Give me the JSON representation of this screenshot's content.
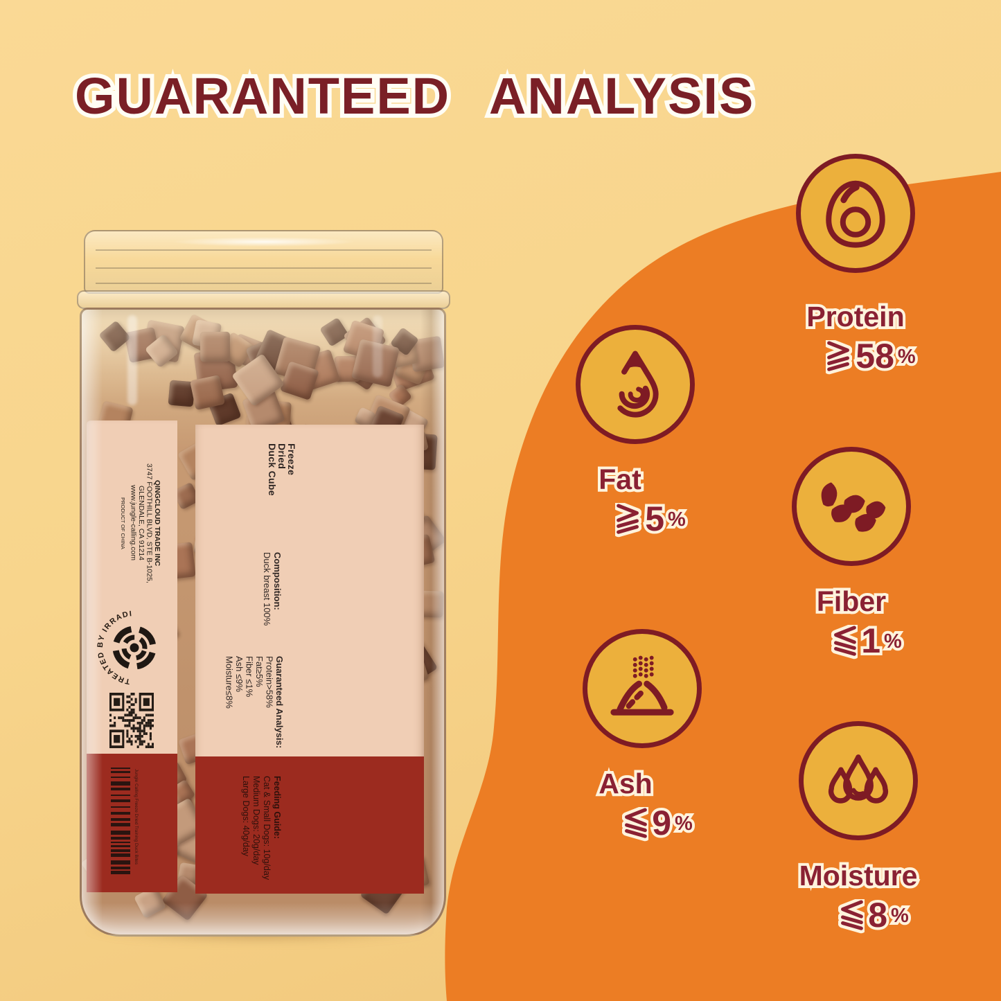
{
  "page": {
    "title": "GUARANTEED ANALYSIS"
  },
  "colors": {
    "bg": "#F8D68C",
    "blob": "#EC7D24",
    "amber": "#ECB03C",
    "maroon": "#7E1B24",
    "text_maroon": "#8A2133",
    "outline": "#FFF3DC",
    "title": "#7A1F26",
    "pink": "#F0CEB5",
    "band": "#9C2B1F",
    "ink": "#302724"
  },
  "stats": [
    {
      "id": "protein",
      "label": "Protein",
      "comparator": "≥",
      "value": "58",
      "unit": "%",
      "icon": "egg-protein-icon"
    },
    {
      "id": "fat",
      "label": "Fat",
      "comparator": "≥",
      "value": "5",
      "unit": "%",
      "icon": "droplet-fat-icon"
    },
    {
      "id": "fiber",
      "label": "Fiber",
      "comparator": "≤",
      "value": "1",
      "unit": "%",
      "icon": "fiber-twist-icon"
    },
    {
      "id": "ash",
      "label": "Ash",
      "comparator": "≤",
      "value": "9",
      "unit": "%",
      "icon": "ash-pile-icon"
    },
    {
      "id": "moisture",
      "label": "Moisture",
      "comparator": "≤",
      "value": "8",
      "unit": "%",
      "icon": "moisture-drops-icon"
    }
  ],
  "jar": {
    "label": {
      "product_name_lines": [
        "Freeze",
        "Dried",
        "Duck Cube"
      ],
      "composition": {
        "heading": "Composition:",
        "line": "Duck breast 100%"
      },
      "guaranteed_analysis": {
        "heading": "Guaranteed Analysis:",
        "lines": [
          "Protein>58%",
          "Fat≥5%",
          "Fiber ≤1%",
          "Ash ≤9%",
          "Moisture≤8%"
        ]
      },
      "feeding_guide": {
        "heading": "Feeding Guide:",
        "lines": [
          "Cat & Small Dogs: 10g/day",
          "Medium Dogs: 20g/day",
          "Large Dogs: 40g/day"
        ]
      },
      "address_lines": [
        "QINGCLOUD TRADE INC",
        "3747 FOOTHILL BLVD, STE B-1025,",
        "GLENDALE, CA 91214",
        "www.jungle-calling.com"
      ],
      "origin": "PRODUCT OF CHINA",
      "irradiation_text": "TREATED BY IRRADIATION",
      "barcode_caption": "Jungle Calling Freeze Dried Training Duck Bites"
    }
  }
}
